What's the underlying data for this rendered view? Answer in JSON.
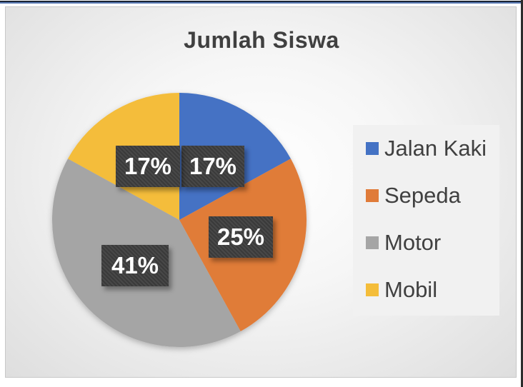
{
  "chart_data": {
    "type": "pie",
    "title": "Jumlah Siswa",
    "categories": [
      "Jalan Kaki",
      "Sepeda",
      "Motor",
      "Mobil"
    ],
    "values": [
      17,
      25,
      41,
      17
    ],
    "data_labels": [
      "17%",
      "25%",
      "41%",
      "17%"
    ],
    "colors": [
      "#4472c4",
      "#e07b39",
      "#a5a5a5",
      "#f4bd3a"
    ],
    "legend_position": "right",
    "start_angle": "12 o'clock",
    "direction": "clockwise"
  }
}
